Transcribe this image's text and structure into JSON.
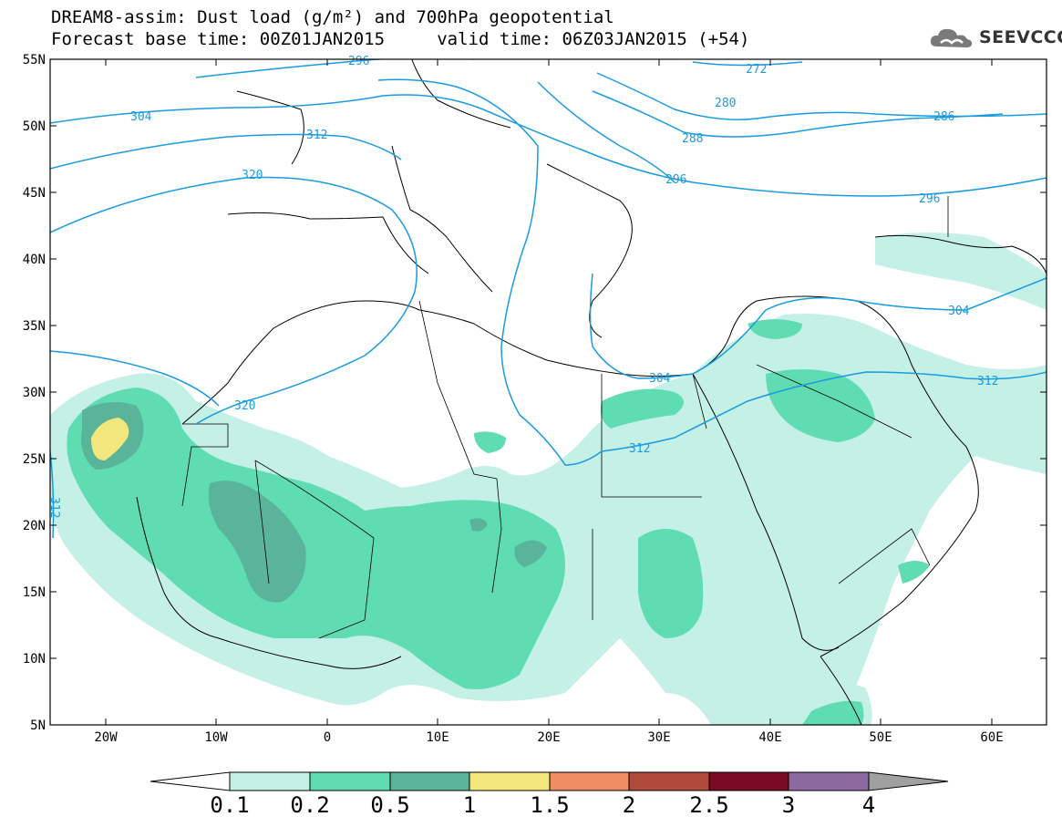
{
  "title": {
    "line1": "DREAM8-assim: Dust load (g/m²) and 700hPa geopotential",
    "line2": "Forecast base time: 00Z01JAN2015     valid time: 06Z03JAN2015 (+54)"
  },
  "logo": {
    "text": "SEEVCCC",
    "icon": "cloud-icon"
  },
  "axes": {
    "lat_labels": [
      "55N",
      "50N",
      "45N",
      "40N",
      "35N",
      "30N",
      "25N",
      "20N",
      "15N",
      "10N",
      "5N"
    ],
    "lon_labels": [
      "20W",
      "10W",
      "0",
      "10E",
      "20E",
      "30E",
      "40E",
      "50E",
      "60E"
    ]
  },
  "colors": {
    "bin_0.1": "#c4f0e6",
    "bin_0.2": "#5fdcb2",
    "bin_0.5": "#5ab499",
    "bin_1": "#f2e77c",
    "bin_1.5": "#ee8d64",
    "bin_2": "#b04a3a",
    "bin_2.5": "#7a0a25",
    "bin_3": "#8c6aa0",
    "bin_4": "#a0a0a0",
    "contour": "#1a9be0"
  },
  "legend": {
    "labels": [
      "0.1",
      "0.2",
      "0.5",
      "1",
      "1.5",
      "2",
      "2.5",
      "3",
      "4"
    ],
    "colors": [
      "#c4f0e6",
      "#5fdcb2",
      "#5ab499",
      "#f2e77c",
      "#ee8d64",
      "#b04a3a",
      "#7a0a25",
      "#8c6aa0"
    ],
    "low_color": "#ffffff",
    "high_color": "#a0a0a0"
  },
  "contours": {
    "labels": [
      "296",
      "304",
      "312",
      "320",
      "272",
      "280",
      "288",
      "296",
      "286",
      "296",
      "304",
      "312",
      "304",
      "312",
      "320",
      "312"
    ]
  }
}
